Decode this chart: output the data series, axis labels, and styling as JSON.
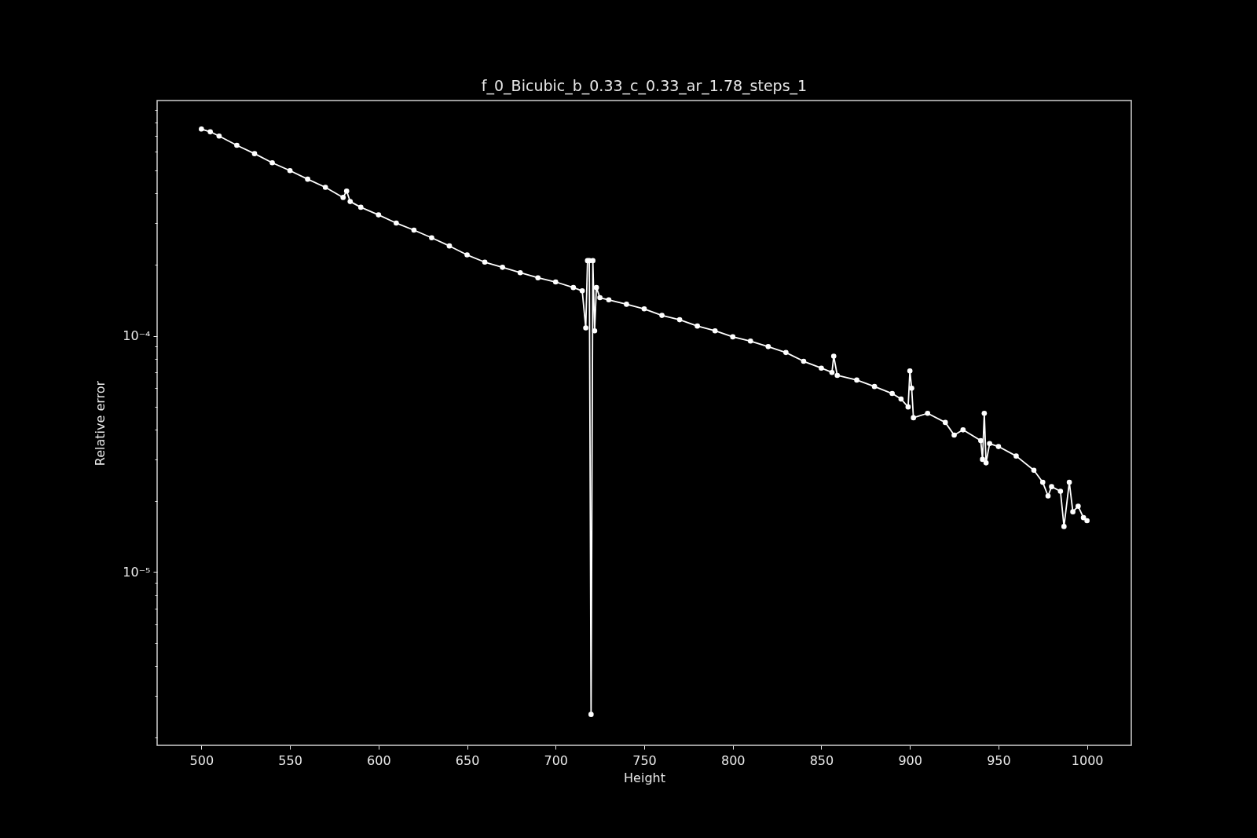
{
  "chart_data": {
    "type": "line",
    "title": "f_0_Bicubic_b_0.33_c_0.33_ar_1.78_steps_1",
    "xlabel": "Height",
    "ylabel": "Relative error",
    "x": [
      500,
      505,
      510,
      520,
      530,
      540,
      550,
      560,
      570,
      580,
      582,
      584,
      590,
      600,
      610,
      620,
      630,
      640,
      650,
      660,
      670,
      680,
      690,
      700,
      710,
      715,
      717,
      718,
      719,
      720,
      721,
      722,
      723,
      725,
      730,
      740,
      750,
      760,
      770,
      780,
      790,
      800,
      810,
      820,
      830,
      840,
      850,
      856,
      857,
      859,
      870,
      880,
      890,
      895,
      899,
      900,
      901,
      902,
      910,
      920,
      925,
      930,
      940,
      941,
      942,
      943,
      945,
      950,
      960,
      970,
      975,
      978,
      980,
      985,
      987,
      990,
      992,
      995,
      998,
      1000
    ],
    "series": [
      {
        "color": "#ffffff",
        "values": [
          0.00075,
          0.00073,
          0.0007,
          0.00064,
          0.00059,
          0.00054,
          0.0005,
          0.00046,
          0.000425,
          0.000385,
          0.00041,
          0.00037,
          0.00035,
          0.000325,
          0.0003,
          0.00028,
          0.00026,
          0.00024,
          0.00022,
          0.000205,
          0.000195,
          0.000185,
          0.000176,
          0.000169,
          0.00016,
          0.000155,
          0.000108,
          0.000208,
          0.000208,
          2.5e-06,
          0.000208,
          0.000105,
          0.00016,
          0.000145,
          0.000142,
          0.000136,
          0.00013,
          0.000122,
          0.000117,
          0.00011,
          0.000105,
          9.9e-05,
          9.5e-05,
          9e-05,
          8.5e-05,
          7.8e-05,
          7.3e-05,
          7e-05,
          8.2e-05,
          6.8e-05,
          6.5e-05,
          6.1e-05,
          5.7e-05,
          5.4e-05,
          5e-05,
          7.1e-05,
          6e-05,
          4.5e-05,
          4.7e-05,
          4.3e-05,
          3.8e-05,
          4e-05,
          3.6e-05,
          3e-05,
          4.7e-05,
          2.9e-05,
          3.5e-05,
          3.4e-05,
          3.1e-05,
          2.7e-05,
          2.4e-05,
          2.1e-05,
          2.3e-05,
          2.2e-05,
          1.56e-05,
          2.4e-05,
          1.8e-05,
          1.9e-05,
          1.7e-05,
          1.65e-05
        ]
      }
    ],
    "xlim": [
      475,
      1025
    ],
    "xticks": [
      500,
      550,
      600,
      650,
      700,
      750,
      800,
      850,
      900,
      950,
      1000
    ],
    "ylim": [
      1.85e-06,
      0.00099
    ],
    "log": true,
    "yticks": [
      {
        "value": 2e-06,
        "label": null
      },
      {
        "value": 3e-06,
        "label": null
      },
      {
        "value": 4e-06,
        "label": null
      },
      {
        "value": 5e-06,
        "label": null
      },
      {
        "value": 6e-06,
        "label": null
      },
      {
        "value": 7e-06,
        "label": null
      },
      {
        "value": 8e-06,
        "label": null
      },
      {
        "value": 9e-06,
        "label": null
      },
      {
        "value": 1e-05,
        "label": "10⁻⁵"
      },
      {
        "value": 2e-05,
        "label": null
      },
      {
        "value": 3e-05,
        "label": null
      },
      {
        "value": 4e-05,
        "label": null
      },
      {
        "value": 5e-05,
        "label": null
      },
      {
        "value": 6e-05,
        "label": null
      },
      {
        "value": 7e-05,
        "label": null
      },
      {
        "value": 8e-05,
        "label": null
      },
      {
        "value": 9e-05,
        "label": null
      },
      {
        "value": 0.0001,
        "label": "10⁻⁴"
      },
      {
        "value": 0.0002,
        "label": null
      },
      {
        "value": 0.0003,
        "label": null
      },
      {
        "value": 0.0004,
        "label": null
      },
      {
        "value": 0.0005,
        "label": null
      },
      {
        "value": 0.0006,
        "label": null
      },
      {
        "value": 0.0007,
        "label": null
      },
      {
        "value": 0.0008,
        "label": null
      },
      {
        "value": 0.0009,
        "label": null
      }
    ],
    "marker": "circle",
    "line_style": "solid",
    "grid": false,
    "legend": false
  }
}
